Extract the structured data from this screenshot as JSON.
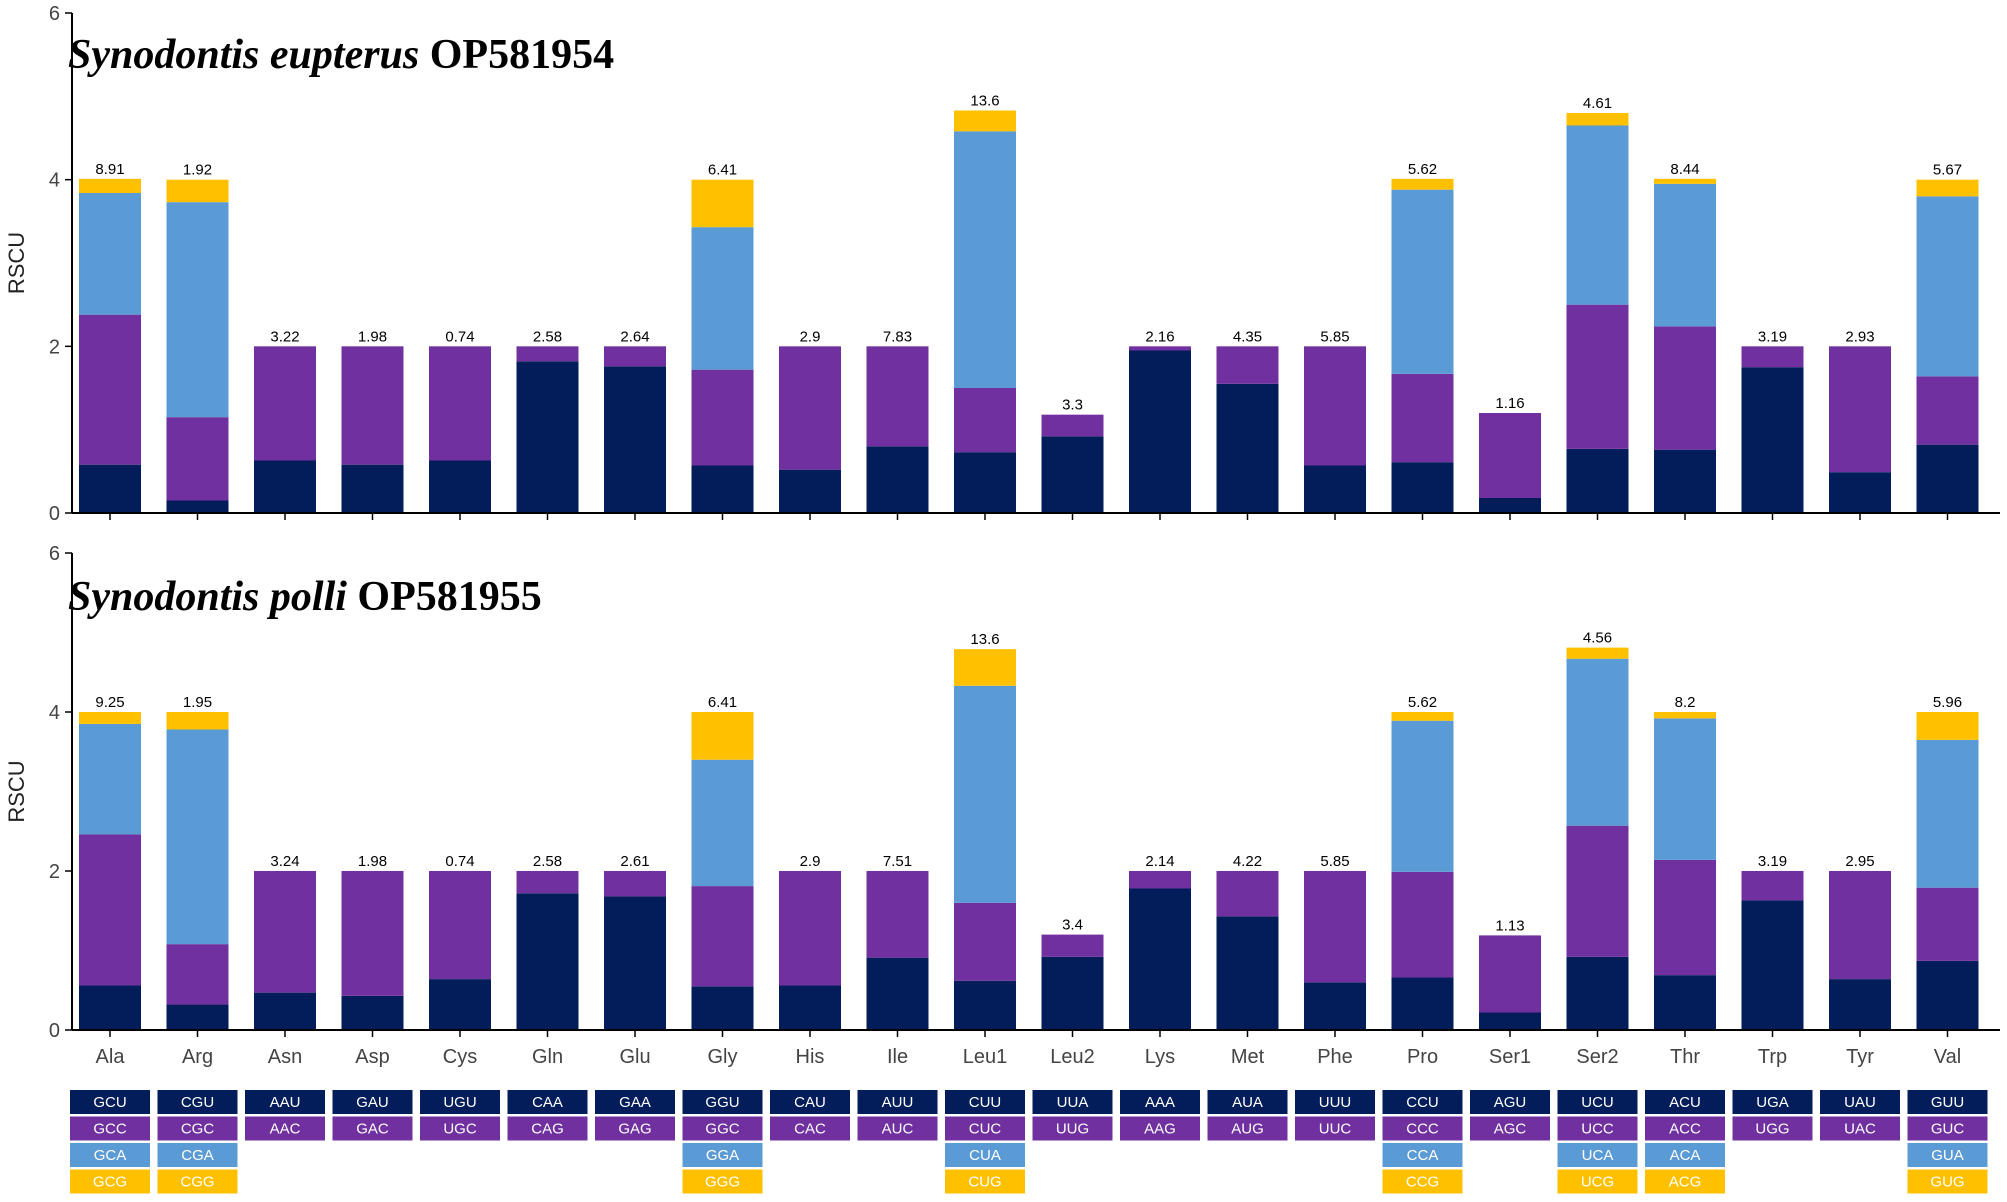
{
  "chart_data": [
    {
      "type": "bar",
      "stacked": true,
      "title_italic": "Synodontis eupterus",
      "title_accession": "OP581954",
      "ylabel": "RSCU",
      "xlabel": "",
      "ylim": [
        0,
        6
      ],
      "yticks": [
        "0",
        "2",
        "4",
        "6"
      ],
      "categories": [
        "Ala",
        "Arg",
        "Asn",
        "Asp",
        "Cys",
        "Gln",
        "Glu",
        "Gly",
        "His",
        "Ile",
        "Leu1",
        "Leu2",
        "Lys",
        "Met",
        "Phe",
        "Pro",
        "Ser1",
        "Ser2",
        "Thr",
        "Trp",
        "Tyr",
        "Val"
      ],
      "series": [
        {
          "name": "codon 1",
          "values": [
            0.58,
            0.15,
            0.63,
            0.58,
            0.63,
            1.82,
            1.76,
            0.57,
            0.52,
            0.8,
            0.73,
            0.92,
            1.95,
            1.55,
            0.57,
            0.61,
            0.18,
            0.77,
            0.76,
            1.75,
            0.49,
            0.82
          ]
        },
        {
          "name": "codon 2",
          "values": [
            1.8,
            1.0,
            1.37,
            1.42,
            1.37,
            0.18,
            0.24,
            1.15,
            1.48,
            1.2,
            0.77,
            0.26,
            0.05,
            0.45,
            1.43,
            1.06,
            1.02,
            1.73,
            1.48,
            0.25,
            1.51,
            0.82
          ]
        },
        {
          "name": "codon 3",
          "values": [
            1.46,
            2.58,
            0,
            0,
            0,
            0,
            0,
            1.71,
            0,
            0,
            3.08,
            0,
            0,
            0,
            0,
            2.21,
            0,
            2.15,
            1.71,
            0,
            0,
            2.16
          ]
        },
        {
          "name": "codon 4",
          "values": [
            0.17,
            0.27,
            0,
            0,
            0,
            0,
            0,
            0.57,
            0,
            0,
            0.25,
            0,
            0,
            0,
            0,
            0.13,
            0,
            0.15,
            0.06,
            0,
            0,
            0.2
          ]
        }
      ],
      "bar_labels": [
        "8.91",
        "1.92",
        "3.22",
        "1.98",
        "0.74",
        "2.58",
        "2.64",
        "6.41",
        "2.9",
        "7.83",
        "13.6",
        "3.3",
        "2.16",
        "4.35",
        "5.85",
        "5.62",
        "1.16",
        "4.61",
        "8.44",
        "3.19",
        "2.93",
        "5.67"
      ]
    },
    {
      "type": "bar",
      "stacked": true,
      "title_italic": "Synodontis polli",
      "title_accession": "OP581955",
      "ylabel": "RSCU",
      "xlabel": "",
      "ylim": [
        0,
        6
      ],
      "yticks": [
        "0",
        "2",
        "4",
        "6"
      ],
      "categories": [
        "Ala",
        "Arg",
        "Asn",
        "Asp",
        "Cys",
        "Gln",
        "Glu",
        "Gly",
        "His",
        "Ile",
        "Leu1",
        "Leu2",
        "Lys",
        "Met",
        "Phe",
        "Pro",
        "Ser1",
        "Ser2",
        "Thr",
        "Trp",
        "Tyr",
        "Val"
      ],
      "series": [
        {
          "name": "codon 1",
          "values": [
            0.56,
            0.32,
            0.47,
            0.43,
            0.64,
            1.72,
            1.68,
            0.55,
            0.56,
            0.91,
            0.62,
            0.92,
            1.78,
            1.43,
            0.6,
            0.66,
            0.22,
            0.92,
            0.69,
            1.63,
            0.64,
            0.87
          ]
        },
        {
          "name": "codon 2",
          "values": [
            1.9,
            0.76,
            1.53,
            1.57,
            1.36,
            0.28,
            0.32,
            1.26,
            1.44,
            1.09,
            0.98,
            0.28,
            0.22,
            0.57,
            1.4,
            1.33,
            0.97,
            1.65,
            1.45,
            0.37,
            1.36,
            0.92
          ]
        },
        {
          "name": "codon 3",
          "values": [
            1.39,
            2.7,
            0,
            0,
            0,
            0,
            0,
            1.59,
            0,
            0,
            2.73,
            0,
            0,
            0,
            0,
            1.9,
            0,
            2.1,
            1.78,
            0,
            0,
            1.86
          ]
        },
        {
          "name": "codon 4",
          "values": [
            0.15,
            0.22,
            0,
            0,
            0,
            0,
            0,
            0.6,
            0,
            0,
            0.46,
            0,
            0,
            0,
            0,
            0.11,
            0,
            0.14,
            0.08,
            0,
            0,
            0.35
          ]
        }
      ],
      "bar_labels": [
        "9.25",
        "1.95",
        "3.24",
        "1.98",
        "0.74",
        "2.58",
        "2.61",
        "6.41",
        "2.9",
        "7.51",
        "13.6",
        "3.4",
        "2.14",
        "4.22",
        "5.85",
        "5.62",
        "1.13",
        "4.56",
        "8.2",
        "3.19",
        "2.95",
        "5.96"
      ]
    }
  ],
  "codon_legend": [
    [
      "GCU",
      "GCC",
      "GCA",
      "GCG"
    ],
    [
      "CGU",
      "CGC",
      "CGA",
      "CGG"
    ],
    [
      "AAU",
      "AAC"
    ],
    [
      "GAU",
      "GAC"
    ],
    [
      "UGU",
      "UGC"
    ],
    [
      "CAA",
      "CAG"
    ],
    [
      "GAA",
      "GAG"
    ],
    [
      "GGU",
      "GGC",
      "GGA",
      "GGG"
    ],
    [
      "CAU",
      "CAC"
    ],
    [
      "AUU",
      "AUC"
    ],
    [
      "CUU",
      "CUC",
      "CUA",
      "CUG"
    ],
    [
      "UUA",
      "UUG"
    ],
    [
      "AAA",
      "AAG"
    ],
    [
      "AUA",
      "AUG"
    ],
    [
      "UUU",
      "UUC"
    ],
    [
      "CCU",
      "CCC",
      "CCA",
      "CCG"
    ],
    [
      "AGU",
      "AGC"
    ],
    [
      "UCU",
      "UCC",
      "UCA",
      "UCG"
    ],
    [
      "ACU",
      "ACC",
      "ACA",
      "ACG"
    ],
    [
      "UGA",
      "UGG"
    ],
    [
      "UAU",
      "UAC"
    ],
    [
      "GUU",
      "GUC",
      "GUA",
      "GUG"
    ]
  ],
  "colors": {
    "codon1": "#021d5a",
    "codon2": "#70309f",
    "codon3": "#5b9bd5",
    "codon4": "#ffc000",
    "axis": "#000000"
  }
}
